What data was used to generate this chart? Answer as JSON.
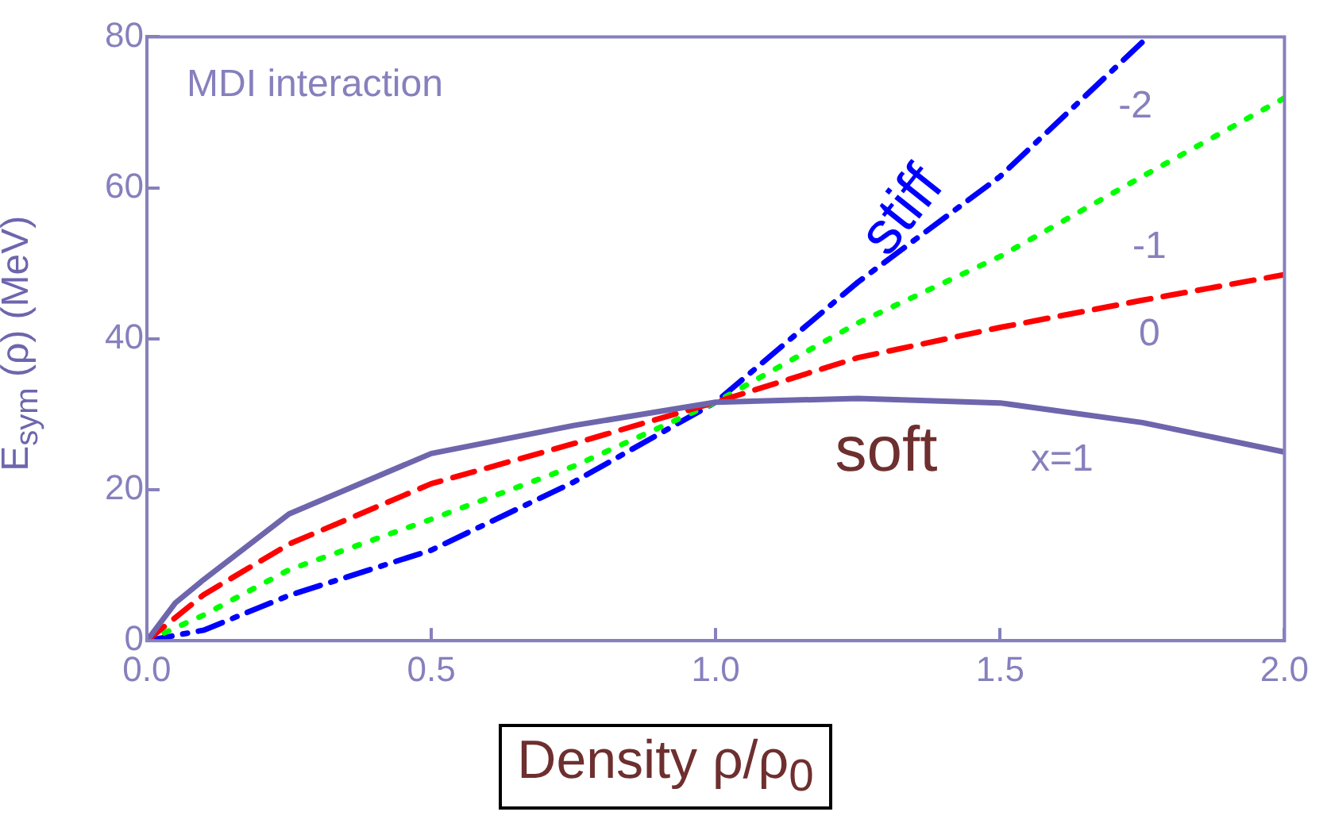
{
  "chart_data": {
    "type": "line",
    "xlabel": "Density ρ/ρ$_{0}$",
    "ylabel": "E$_{sym}$ (ρ) (MeV)",
    "xlim": [
      0,
      2
    ],
    "ylim": [
      0,
      80
    ],
    "xticks": [
      {
        "value": 0,
        "label": "0.0"
      },
      {
        "value": 0.5,
        "label": "0.5"
      },
      {
        "value": 1,
        "label": "1.0"
      },
      {
        "value": 1.5,
        "label": "1.5"
      },
      {
        "value": 2,
        "label": "2.0"
      }
    ],
    "yticks": [
      0,
      20,
      40,
      60,
      80
    ],
    "grid": false,
    "legend": false,
    "marker": "none",
    "annotations": [
      "MDI interaction",
      "stiff",
      "soft"
    ],
    "series": [
      {
        "name": "x=1",
        "color": "#6d66ad",
        "line_style": "solid",
        "x": [
          0,
          0.05,
          0.1,
          0.25,
          0.5,
          0.75,
          1,
          1.25,
          1.5,
          1.75,
          2
        ],
        "values": [
          0,
          5,
          8.1,
          16.8,
          24.8,
          28.5,
          31.6,
          32.1,
          31.5,
          28.9,
          25
        ]
      },
      {
        "name": "0",
        "color": "#ff0000",
        "line_style": "dashed",
        "x": [
          0,
          0.1,
          0.25,
          0.5,
          0.75,
          1,
          1.25,
          1.5,
          1.75,
          2
        ],
        "values": [
          0,
          6.1,
          12.8,
          20.8,
          26.1,
          31.6,
          37.5,
          41.5,
          45.1,
          48.5
        ]
      },
      {
        "name": "-1",
        "color": "#00ff00",
        "line_style": "dotted",
        "x": [
          0,
          0.1,
          0.25,
          0.5,
          0.75,
          1,
          1.25,
          1.5,
          1.75,
          2
        ],
        "values": [
          0,
          3.4,
          9.4,
          16.1,
          23.1,
          31.6,
          42.1,
          50.9,
          61.5,
          71.9
        ]
      },
      {
        "name": "-2",
        "color": "#0000ff",
        "line_style": "dashdot",
        "x": [
          0,
          0.1,
          0.25,
          0.5,
          0.75,
          1,
          1.25,
          1.5,
          1.76
        ],
        "values": [
          0,
          1.4,
          6,
          12,
          21,
          31.6,
          47.5,
          61.5,
          80
        ]
      }
    ]
  }
}
